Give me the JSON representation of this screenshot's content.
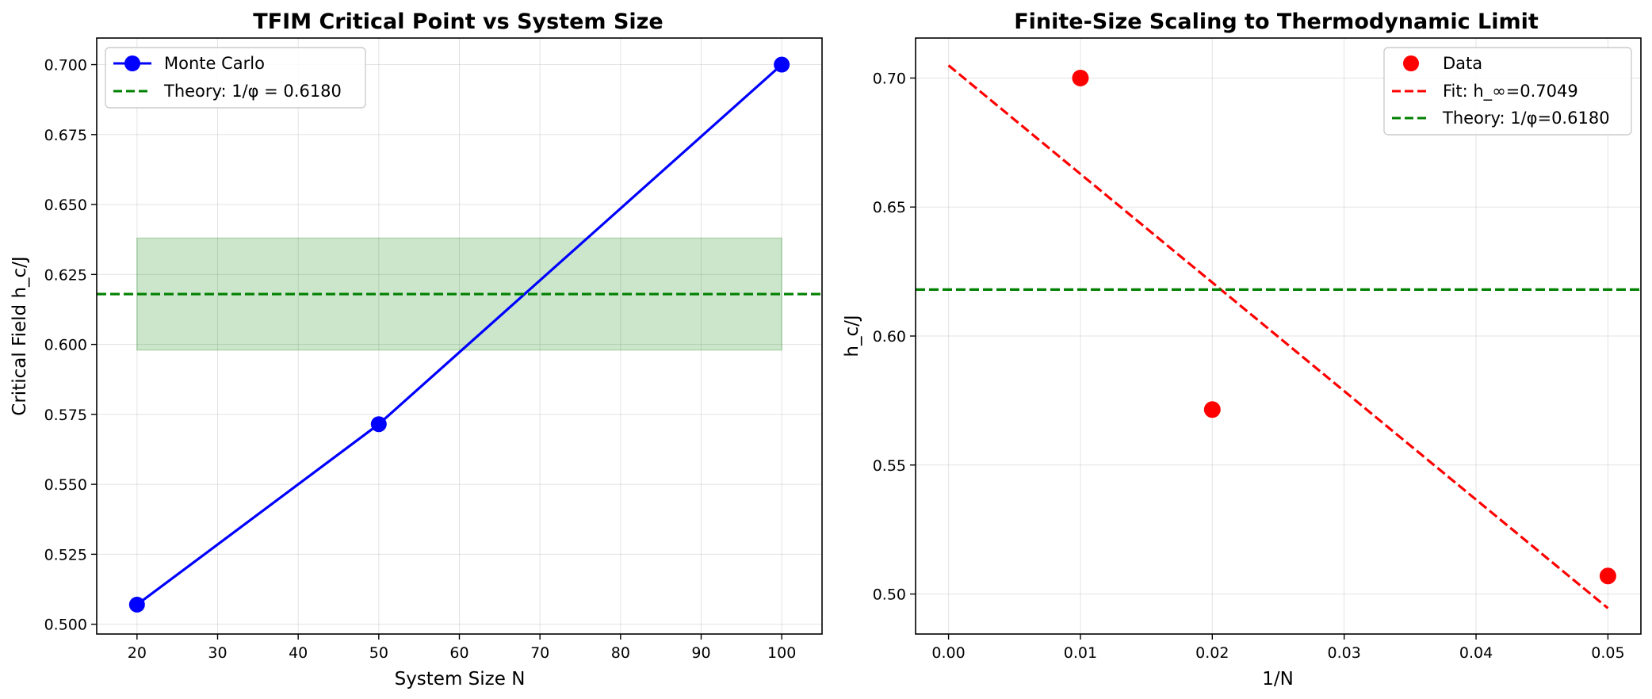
{
  "chart_data": [
    {
      "type": "line",
      "title": "TFIM Critical Point vs System Size",
      "xlabel": "System Size N",
      "ylabel": "Critical Field h_c/J",
      "xlim": [
        15,
        105
      ],
      "ylim": [
        0.4965,
        0.7095
      ],
      "xticks": [
        20,
        30,
        40,
        50,
        60,
        70,
        80,
        90,
        100
      ],
      "yticks": [
        0.5,
        0.525,
        0.55,
        0.575,
        0.6,
        0.625,
        0.65,
        0.675,
        0.7
      ],
      "ytick_decimals": 3,
      "grid": true,
      "legend_position": "top-left",
      "series": [
        {
          "name": "Monte Carlo",
          "kind": "line-marker",
          "color": "#0000ff",
          "x": [
            20,
            50,
            100
          ],
          "y": [
            0.507,
            0.5715,
            0.7
          ]
        },
        {
          "name": "Theory: 1/φ = 0.6180",
          "kind": "hline",
          "color": "#008000",
          "y": 0.618
        }
      ],
      "band": {
        "x": [
          20,
          100
        ],
        "y": [
          0.598,
          0.638
        ],
        "color": "#008000"
      }
    },
    {
      "type": "scatter",
      "title": "Finite-Size Scaling to Thermodynamic Limit",
      "xlabel": "1/N",
      "ylabel": "h_c/J",
      "xlim": [
        -0.0025,
        0.0525
      ],
      "ylim": [
        0.4845,
        0.7155
      ],
      "xticks": [
        0.0,
        0.01,
        0.02,
        0.03,
        0.04,
        0.05
      ],
      "xtick_decimals": 2,
      "yticks": [
        0.5,
        0.55,
        0.6,
        0.65,
        0.7
      ],
      "ytick_decimals": 2,
      "grid": true,
      "legend_position": "top-right",
      "series": [
        {
          "name": "Data",
          "kind": "points",
          "color": "#ff0000",
          "x": [
            0.01,
            0.02,
            0.05
          ],
          "y": [
            0.7,
            0.5715,
            0.507
          ]
        },
        {
          "name": "Fit: h_∞=0.7049",
          "kind": "dashed-line",
          "color": "#ff0000",
          "x": [
            0.0,
            0.05
          ],
          "y": [
            0.7049,
            0.4945
          ]
        },
        {
          "name": "Theory: 1/φ=0.6180",
          "kind": "hline",
          "color": "#008000",
          "y": 0.618
        }
      ]
    }
  ]
}
